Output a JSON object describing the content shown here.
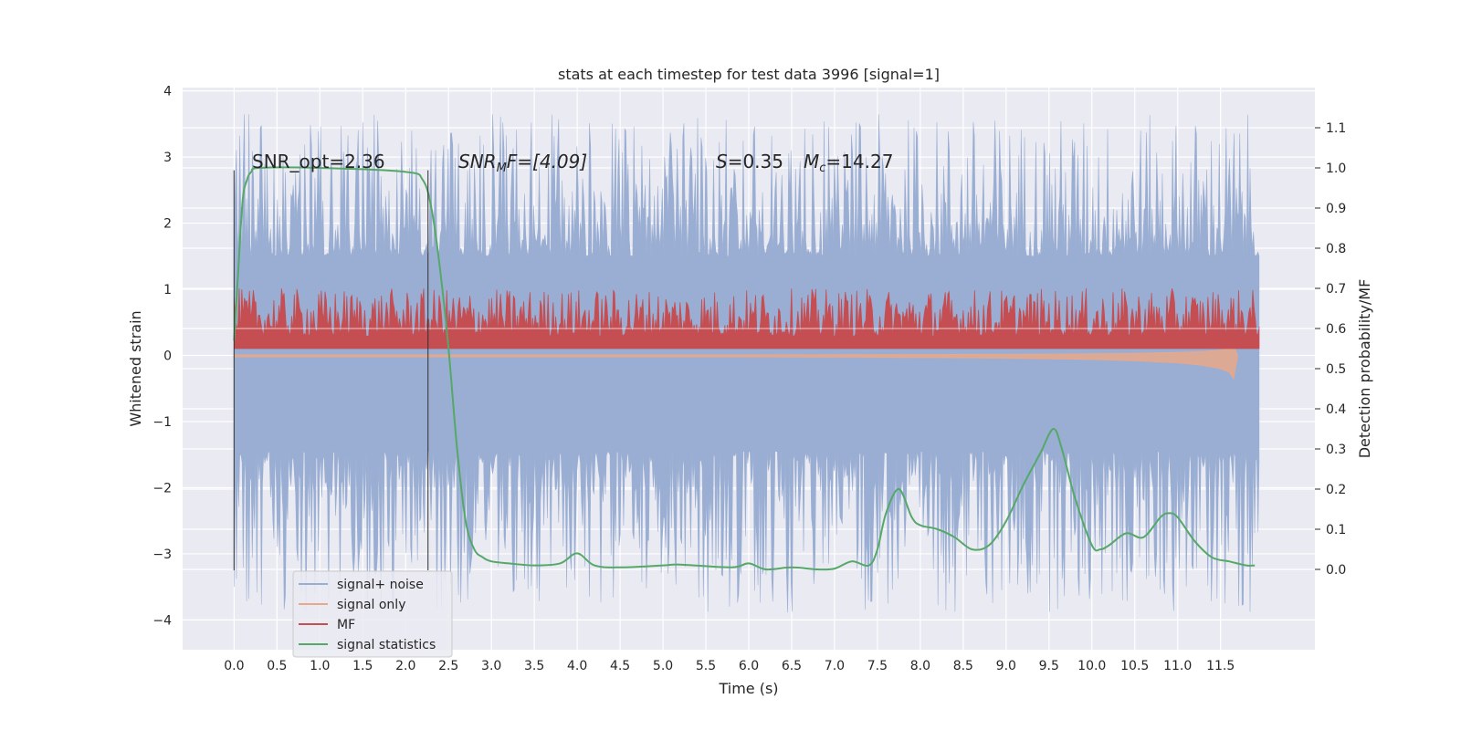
{
  "chart_data": {
    "type": "line",
    "title": "stats at each timestep for test data 3996 [signal=1]",
    "xlabel": "Time (s)",
    "ylabel_left": "Whitened strain",
    "ylabel_right": "Detection probability/MF",
    "xlim": [
      -0.6,
      12.6
    ],
    "ylim_left": [
      -4.45,
      4.05
    ],
    "ylim_right": [
      -0.2,
      1.2
    ],
    "grid": true,
    "x_ticks": [
      "0.0",
      "0.5",
      "1.0",
      "1.5",
      "2.0",
      "2.5",
      "3.0",
      "3.5",
      "4.0",
      "4.5",
      "5.0",
      "5.5",
      "6.0",
      "6.5",
      "7.0",
      "7.5",
      "8.0",
      "8.5",
      "9.0",
      "9.5",
      "10.0",
      "10.5",
      "11.0",
      "11.5"
    ],
    "y_left_ticks": [
      "−4",
      "−3",
      "−2",
      "−1",
      "0",
      "1",
      "2",
      "3",
      "4"
    ],
    "y_right_ticks": [
      "0.0",
      "0.1",
      "0.2",
      "0.3",
      "0.4",
      "0.5",
      "0.6",
      "0.7",
      "0.8",
      "0.9",
      "1.0",
      "1.1"
    ],
    "annotations": {
      "snr_opt": "SNR_opt=2.36",
      "snr_mf_main": "SNR",
      "snr_mf_sub": "M",
      "snr_mf_rest": "F=[4.09]",
      "s_label": "S",
      "s_value": "=0.35",
      "mc_label": "M",
      "mc_sub": "c",
      "mc_value": "=14.27"
    },
    "vertical_lines_x": [
      0.0,
      2.26
    ],
    "series": [
      {
        "name": "signal+ noise",
        "color": "#9aaed3",
        "axis": "left",
        "x_range": [
          0.0,
          11.95
        ],
        "band_core": [
          -1.45,
          1.5
        ],
        "spike_range": [
          -3.9,
          3.65
        ]
      },
      {
        "name": "signal only",
        "color": "#e8a88a",
        "axis": "left",
        "x": [
          0.0,
          1.0,
          2.0,
          3.0,
          4.0,
          5.0,
          6.0,
          7.0,
          8.0,
          9.0,
          10.0,
          10.5,
          11.0,
          11.3,
          11.5,
          11.6,
          11.65,
          11.7
        ],
        "amplitude": [
          0.02,
          0.02,
          0.02,
          0.02,
          0.02,
          0.02,
          0.02,
          0.025,
          0.03,
          0.04,
          0.06,
          0.08,
          0.11,
          0.15,
          0.2,
          0.25,
          0.35,
          0.0
        ]
      },
      {
        "name": "MF",
        "color": "#c44e52",
        "axis": "right",
        "x_range": [
          0.0,
          11.95
        ],
        "base": 0.55,
        "peak_range": [
          0.58,
          0.7
        ]
      },
      {
        "name": "signal statistics",
        "color": "#55a868",
        "axis": "right",
        "x": [
          0.0,
          0.05,
          0.1,
          0.15,
          0.2,
          0.3,
          1.0,
          2.0,
          2.2,
          2.3,
          2.4,
          2.5,
          2.6,
          2.7,
          2.8,
          2.9,
          3.0,
          3.2,
          3.5,
          3.8,
          4.0,
          4.2,
          4.5,
          5.0,
          5.2,
          5.8,
          6.0,
          6.2,
          6.5,
          6.8,
          7.0,
          7.2,
          7.4,
          7.5,
          7.6,
          7.75,
          7.9,
          8.0,
          8.2,
          8.4,
          8.6,
          8.8,
          9.0,
          9.2,
          9.4,
          9.55,
          9.65,
          9.8,
          10.0,
          10.1,
          10.2,
          10.4,
          10.6,
          10.8,
          10.9,
          11.0,
          11.2,
          11.4,
          11.6,
          11.8,
          11.9
        ],
        "values": [
          0.57,
          0.75,
          0.92,
          0.97,
          0.99,
          1.0,
          1.0,
          0.99,
          0.97,
          0.9,
          0.75,
          0.55,
          0.3,
          0.12,
          0.05,
          0.03,
          0.02,
          0.015,
          0.01,
          0.015,
          0.04,
          0.01,
          0.005,
          0.01,
          0.012,
          0.005,
          0.015,
          0.0,
          0.005,
          0.0,
          0.002,
          0.02,
          0.01,
          0.05,
          0.14,
          0.2,
          0.13,
          0.11,
          0.1,
          0.08,
          0.05,
          0.06,
          0.12,
          0.21,
          0.29,
          0.35,
          0.3,
          0.18,
          0.06,
          0.05,
          0.06,
          0.09,
          0.08,
          0.13,
          0.14,
          0.13,
          0.07,
          0.03,
          0.02,
          0.01,
          0.01
        ]
      }
    ],
    "legend_position": "lower-left"
  }
}
